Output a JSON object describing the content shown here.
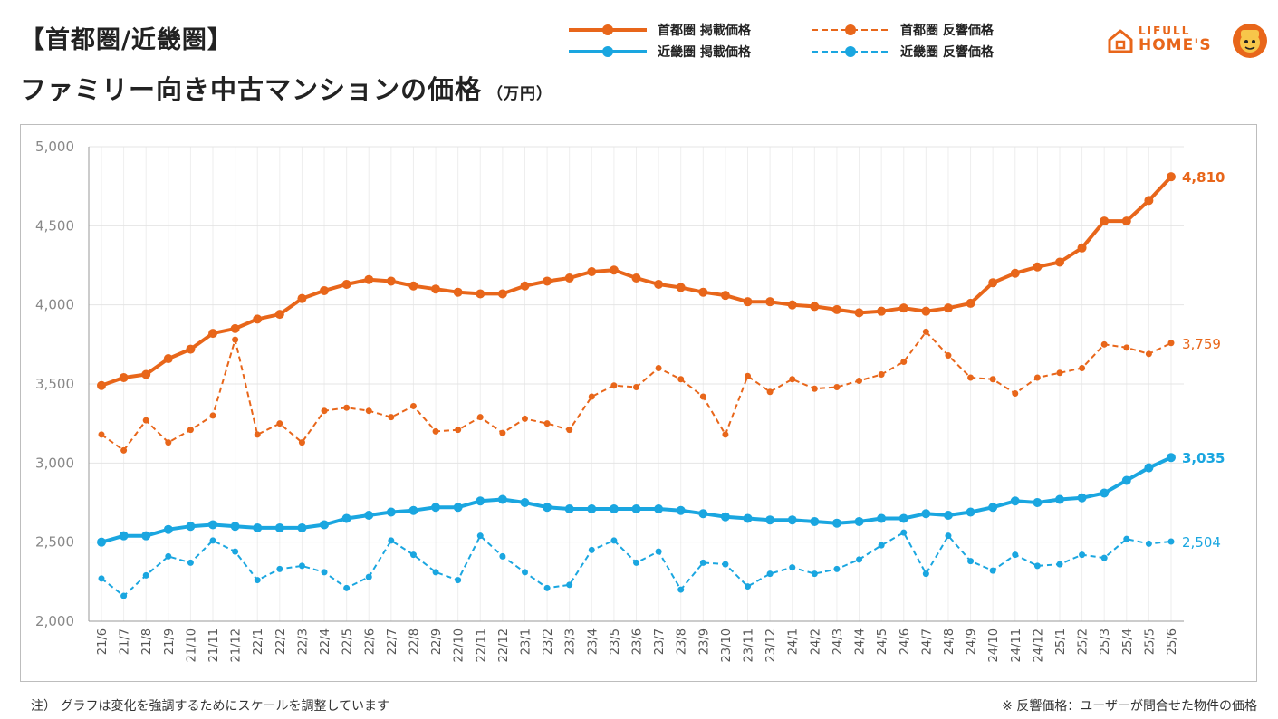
{
  "header": {
    "title_line1": "【首都圏/近畿圏】",
    "title_line2": "ファミリー向き中古マンションの価格",
    "unit": "（万円）"
  },
  "legend": {
    "items": [
      {
        "label": "首都圏 掲載価格",
        "color": "#e8661a",
        "dash": false
      },
      {
        "label": "近畿圏 掲載価格",
        "color": "#1aa6e0",
        "dash": false
      },
      {
        "label": "首都圏 反響価格",
        "color": "#e8661a",
        "dash": true
      },
      {
        "label": "近畿圏 反響価格",
        "color": "#1aa6e0",
        "dash": true
      }
    ]
  },
  "brand": {
    "line1": "LIFULL",
    "line2": "HOME'S",
    "color": "#e8661a",
    "icon": "house-icon"
  },
  "notes": {
    "left": "注） グラフは変化を強調するためにスケールを調整しています",
    "right": "※ 反響価格：ユーザーが問合せた物件の価格"
  },
  "chart_data": {
    "type": "line",
    "ylim": [
      2000,
      5000
    ],
    "yticks": [
      "2,000",
      "2,500",
      "3,000",
      "3,500",
      "4,000",
      "4,500",
      "5,000"
    ],
    "ytick_values": [
      2000,
      2500,
      3000,
      3500,
      4000,
      4500,
      5000
    ],
    "grid": true,
    "categories": [
      "21/6",
      "21/7",
      "21/8",
      "21/9",
      "21/10",
      "21/11",
      "21/12",
      "22/1",
      "22/2",
      "22/3",
      "22/4",
      "22/5",
      "22/6",
      "22/7",
      "22/8",
      "22/9",
      "22/10",
      "22/11",
      "22/12",
      "23/1",
      "23/2",
      "23/3",
      "23/4",
      "23/5",
      "23/6",
      "23/7",
      "23/8",
      "23/9",
      "23/10",
      "23/11",
      "23/12",
      "24/1",
      "24/2",
      "24/3",
      "24/4",
      "24/5",
      "24/6",
      "24/7",
      "24/8",
      "24/9",
      "24/10",
      "24/11",
      "24/12",
      "25/1",
      "25/2",
      "25/3",
      "25/4",
      "25/5",
      "25/6"
    ],
    "series": [
      {
        "name": "首都圏 掲載価格",
        "color": "#e8661a",
        "dash": false,
        "bold_label": true,
        "last_label": "4,810",
        "values": [
          3490,
          3540,
          3560,
          3660,
          3720,
          3820,
          3850,
          3910,
          3940,
          4040,
          4090,
          4130,
          4160,
          4150,
          4120,
          4100,
          4080,
          4070,
          4070,
          4120,
          4150,
          4170,
          4210,
          4220,
          4170,
          4130,
          4110,
          4080,
          4060,
          4020,
          4020,
          4000,
          3990,
          3970,
          3950,
          3960,
          3980,
          3960,
          3980,
          4010,
          4140,
          4200,
          4240,
          4270,
          4360,
          4530,
          4530,
          4660,
          4810
        ]
      },
      {
        "name": "首都圏 反響価格",
        "color": "#e8661a",
        "dash": true,
        "bold_label": false,
        "last_label": "3,759",
        "values": [
          3180,
          3080,
          3270,
          3130,
          3210,
          3300,
          3780,
          3180,
          3250,
          3130,
          3330,
          3350,
          3330,
          3290,
          3360,
          3200,
          3210,
          3290,
          3190,
          3280,
          3250,
          3210,
          3420,
          3490,
          3480,
          3600,
          3530,
          3420,
          3180,
          3550,
          3450,
          3530,
          3470,
          3480,
          3520,
          3560,
          3640,
          3830,
          3680,
          3540,
          3530,
          3440,
          3540,
          3570,
          3600,
          3750,
          3730,
          3690,
          3759
        ]
      },
      {
        "name": "近畿圏 掲載価格",
        "color": "#1aa6e0",
        "dash": false,
        "bold_label": true,
        "last_label": "3,035",
        "values": [
          2500,
          2540,
          2540,
          2580,
          2600,
          2610,
          2600,
          2590,
          2590,
          2590,
          2610,
          2650,
          2670,
          2690,
          2700,
          2720,
          2720,
          2760,
          2770,
          2750,
          2720,
          2710,
          2710,
          2710,
          2710,
          2710,
          2700,
          2680,
          2660,
          2650,
          2640,
          2640,
          2630,
          2620,
          2630,
          2650,
          2650,
          2680,
          2670,
          2690,
          2720,
          2760,
          2750,
          2770,
          2780,
          2810,
          2890,
          2970,
          3035
        ]
      },
      {
        "name": "近畿圏 反響価格",
        "color": "#1aa6e0",
        "dash": true,
        "bold_label": false,
        "last_label": "2,504",
        "values": [
          2270,
          2160,
          2290,
          2410,
          2370,
          2510,
          2440,
          2260,
          2330,
          2350,
          2310,
          2210,
          2280,
          2510,
          2420,
          2310,
          2260,
          2540,
          2410,
          2310,
          2210,
          2230,
          2450,
          2510,
          2370,
          2440,
          2200,
          2370,
          2360,
          2220,
          2300,
          2340,
          2300,
          2330,
          2390,
          2480,
          2560,
          2300,
          2540,
          2380,
          2320,
          2420,
          2350,
          2360,
          2420,
          2400,
          2520,
          2490,
          2504
        ]
      }
    ]
  }
}
